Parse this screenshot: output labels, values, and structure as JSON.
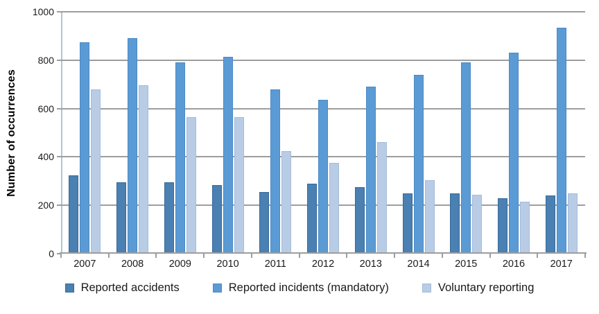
{
  "chart_data": {
    "type": "bar",
    "title": "",
    "xlabel": "",
    "ylabel": "Number of occurrences",
    "ylim": [
      0,
      1000
    ],
    "yticks": [
      0,
      200,
      400,
      600,
      800,
      1000
    ],
    "grid": "horizontal",
    "legend_position": "bottom",
    "categories": [
      "2007",
      "2008",
      "2009",
      "2010",
      "2011",
      "2012",
      "2013",
      "2014",
      "2015",
      "2016",
      "2017"
    ],
    "series": [
      {
        "name": "Reported accidents",
        "color": "#4a80b2",
        "border_color": "#3a6a97",
        "values": [
          325,
          295,
          295,
          285,
          255,
          290,
          275,
          250,
          250,
          230,
          240
        ]
      },
      {
        "name": "Reported incidents (mandatory)",
        "color": "#5b9bd5",
        "border_color": "#4a89c4",
        "values": [
          875,
          890,
          790,
          815,
          680,
          635,
          690,
          740,
          790,
          830,
          935
        ]
      },
      {
        "name": "Voluntary reporting",
        "color": "#b9cce6",
        "border_color": "#a2bbd9",
        "values": [
          680,
          695,
          565,
          565,
          425,
          375,
          460,
          305,
          245,
          215,
          250
        ]
      }
    ]
  },
  "colors": {
    "gridline": "#9d9d9d",
    "axis_line": "#b7c2cd",
    "tick": "#9d9d9d",
    "text": "#1a1a1a"
  }
}
